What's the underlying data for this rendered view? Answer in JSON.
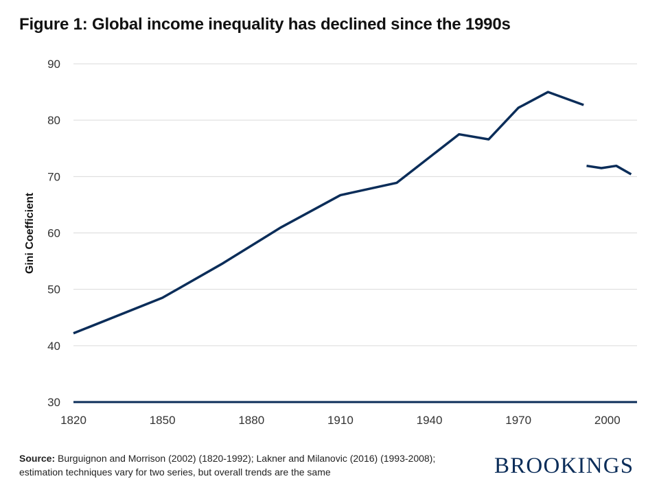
{
  "title": "Figure 1: Global income inequality has declined since the 1990s",
  "source": {
    "label": "Source:",
    "text": "Burguignon and Morrison (2002) (1820-1992); Lakner and Milanovic (2016) (1993-2008); estimation techniques vary for two series, but overall trends are the same"
  },
  "brand": "BROOKINGS",
  "colors": {
    "line": "#0b2d59",
    "grid": "#d9d9d9",
    "axis": "#0b2d59"
  },
  "chart_data": {
    "type": "line",
    "title": "Figure 1: Global income inequality has declined since the 1990s",
    "xlabel": "",
    "ylabel": "Gini Coefficient",
    "xlim": [
      1820,
      2010
    ],
    "ylim": [
      30,
      90
    ],
    "xticks": [
      1820,
      1850,
      1880,
      1910,
      1940,
      1970,
      2000
    ],
    "yticks": [
      30,
      40,
      50,
      60,
      70,
      80,
      90
    ],
    "grid": true,
    "series": [
      {
        "name": "Burguignon and Morrison (2002) (1820-1992)",
        "x": [
          1820,
          1850,
          1870,
          1890,
          1910,
          1929,
          1950,
          1960,
          1970,
          1980,
          1992
        ],
        "values": [
          42.2,
          48.5,
          54.5,
          61.0,
          66.7,
          68.9,
          77.5,
          76.6,
          82.2,
          85.0,
          82.7
        ]
      },
      {
        "name": "Lakner and Milanovic (2016) (1993-2008)",
        "x": [
          1993,
          1998,
          2003,
          2008
        ],
        "values": [
          71.9,
          71.5,
          71.9,
          70.4
        ]
      }
    ]
  }
}
